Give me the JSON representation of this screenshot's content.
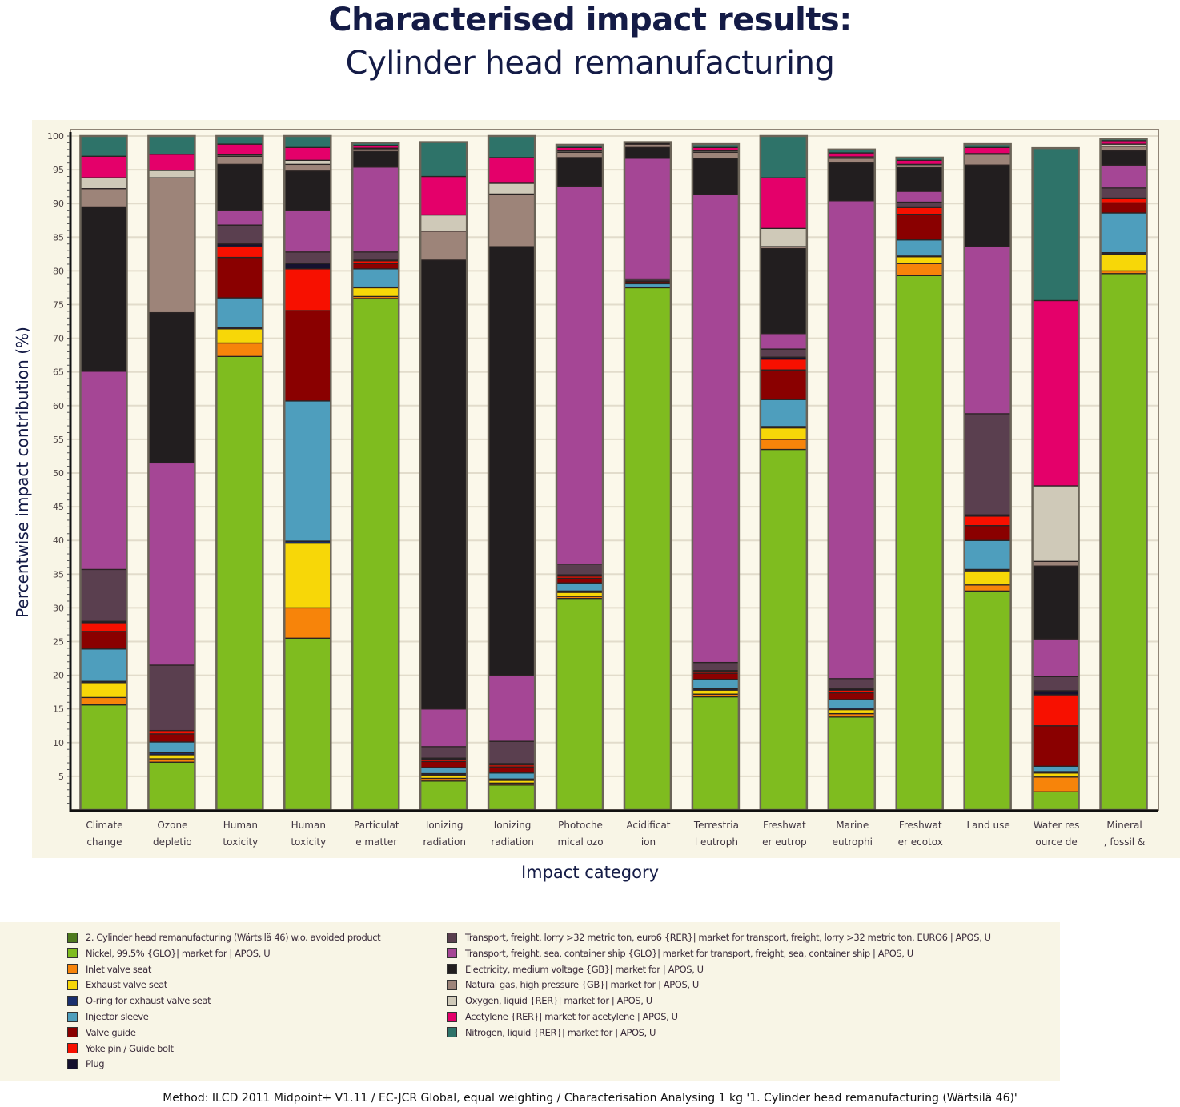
{
  "header": {
    "title": "Characterised impact results:",
    "subtitle": "Cylinder head remanufacturing"
  },
  "footer": {
    "method": "Method: ILCD 2011 Midpoint+ V1.11 / EC-JCR Global, equal weighting / Characterisation Analysing 1 kg '1. Cylinder head remanufacturing (Wärtsilä 46)'"
  },
  "chart_data": {
    "type": "bar",
    "stacked": true,
    "title": "Characterised impact results: Cylinder head remanufacturing",
    "xlabel": "Impact category",
    "ylabel": "Percentwise impact contribution (%)",
    "ylim": [
      0,
      100
    ],
    "yticks": [
      5,
      10,
      15,
      20,
      25,
      30,
      35,
      40,
      45,
      50,
      55,
      60,
      65,
      70,
      75,
      80,
      85,
      90,
      95,
      100
    ],
    "grid": true,
    "legend_position": "bottom",
    "categories": [
      [
        "Climate",
        "change"
      ],
      [
        "Ozone",
        "depletio"
      ],
      [
        "Human",
        "toxicity"
      ],
      [
        "Human",
        "toxicity"
      ],
      [
        "Particulat",
        "e matter"
      ],
      [
        "Ionizing",
        "radiation"
      ],
      [
        "Ionizing",
        "radiation"
      ],
      [
        "Photoche",
        "mical ozo"
      ],
      [
        "Acidificat",
        "ion"
      ],
      [
        "Terrestria",
        "l eutroph"
      ],
      [
        "Freshwat",
        "er eutrop"
      ],
      [
        "Marine",
        "eutrophi"
      ],
      [
        "Freshwat",
        "er ecotox"
      ],
      [
        "Land use",
        ""
      ],
      [
        "Water res",
        "ource de"
      ],
      [
        "Mineral",
        ", fossil &"
      ]
    ],
    "series": [
      {
        "name": "2. Cylinder head remanufacturing (Wärtsilä 46) w.o. avoided product",
        "color": "#4e7a1e",
        "values": [
          0,
          0,
          0,
          0,
          0,
          0,
          0,
          0,
          0,
          0,
          0,
          0,
          0,
          0,
          0,
          0
        ]
      },
      {
        "name": "Nickel, 99.5% {GLO}| market for | APOS, U",
        "color": "#7fbc1f",
        "values": [
          15.6,
          7.1,
          67.3,
          25.5,
          75.9,
          4.3,
          3.7,
          31.4,
          77.5,
          16.8,
          53.5,
          13.8,
          79.3,
          32.5,
          2.7,
          79.6
        ]
      },
      {
        "name": "Inlet valve seat",
        "color": "#f7840a",
        "values": [
          1.1,
          0.5,
          2.0,
          4.5,
          0.3,
          0.4,
          0.3,
          0.3,
          0,
          0.4,
          1.5,
          0.5,
          1.8,
          0.9,
          2.2,
          0.4
        ]
      },
      {
        "name": "Exhaust valve seat",
        "color": "#f7d708",
        "values": [
          2.2,
          0.6,
          2.1,
          9.6,
          1.3,
          0.5,
          0.4,
          0.6,
          0,
          0.6,
          1.7,
          0.6,
          1.0,
          2.1,
          0.6,
          2.5
        ]
      },
      {
        "name": "O-ring for exhaust valve seat",
        "color": "#1a2f6e",
        "values": [
          0.2,
          0.3,
          0.2,
          0.3,
          0.1,
          0.2,
          0.2,
          0.2,
          0.1,
          0.2,
          0.2,
          0.2,
          0.1,
          0.2,
          0.2,
          0.2
        ]
      },
      {
        "name": "Injector sleeve",
        "color": "#4e9ebd",
        "values": [
          4.8,
          1.6,
          4.4,
          20.8,
          2.7,
          0.9,
          0.9,
          1.2,
          0.5,
          1.4,
          4.0,
          1.3,
          2.4,
          4.3,
          0.8,
          5.9
        ]
      },
      {
        "name": "Valve guide",
        "color": "#8a0000",
        "values": [
          2.6,
          1.2,
          6.0,
          13.4,
          0.8,
          0.9,
          0.9,
          0.7,
          0.3,
          0.9,
          4.4,
          1.0,
          3.8,
          2.2,
          6.0,
          1.5
        ]
      },
      {
        "name": "Yoke pin / Guide bolt",
        "color": "#f71000",
        "values": [
          1.3,
          0.5,
          1.6,
          6.2,
          0.4,
          0.3,
          0.3,
          0.3,
          0.1,
          0.3,
          1.6,
          0.4,
          1.0,
          1.4,
          4.6,
          0.6
        ]
      },
      {
        "name": "Plug",
        "color": "#15112e",
        "values": [
          0.2,
          0,
          0.4,
          0.8,
          0.1,
          0.2,
          0.2,
          0.2,
          0,
          0.1,
          0.3,
          0.2,
          0.1,
          0.2,
          0.6,
          0.1
        ]
      },
      {
        "name": "Transport, freight, lorry >32 metric ton, euro6 {RER}| market for transport, freight, lorry >32 metric ton, EURO6 | APOS, U",
        "color": "#5a3f4f",
        "values": [
          7.7,
          9.7,
          2.8,
          1.7,
          1.2,
          1.7,
          3.3,
          1.6,
          0.3,
          1.2,
          1.2,
          1.5,
          0.7,
          15.0,
          2.1,
          1.5
        ]
      },
      {
        "name": "Transport, freight, sea, container ship {GLO}| market for transport, freight, sea, container ship | APOS, U",
        "color": "#a54695",
        "values": [
          29.4,
          30.0,
          2.2,
          6.2,
          12.6,
          5.6,
          9.8,
          56.1,
          17.9,
          69.4,
          2.3,
          70.9,
          1.6,
          24.8,
          5.6,
          3.4
        ]
      },
      {
        "name": "Electricity, medium voltage {GB}| market for | APOS, U",
        "color": "#221e1f",
        "values": [
          24.4,
          22.3,
          6.8,
          5.8,
          2.3,
          66.6,
          63.6,
          4.2,
          1.6,
          5.4,
          12.6,
          5.6,
          3.5,
          12.1,
          10.8,
          2.1
        ]
      },
      {
        "name": "Natural gas, high pressure {GB}| market for | APOS, U",
        "color": "#9d8479",
        "values": [
          2.7,
          20.0,
          1.2,
          1.0,
          0.4,
          4.3,
          7.8,
          0.8,
          0.5,
          0.9,
          0.3,
          0.7,
          0.3,
          1.6,
          0.7,
          0.7
        ]
      },
      {
        "name": "Oxygen, liquid {RER}| market for | APOS, U",
        "color": "#cfc9b8",
        "values": [
          1.6,
          1.1,
          0.2,
          0.6,
          0.1,
          2.4,
          1.6,
          0.2,
          0.1,
          0.2,
          2.7,
          0.2,
          0.2,
          0.1,
          11.2,
          0.3
        ]
      },
      {
        "name": "Acetylene {RER}| market for acetylene | APOS, U",
        "color": "#e4006a",
        "values": [
          3.2,
          2.4,
          1.6,
          1.9,
          0.4,
          5.7,
          3.8,
          0.5,
          0.1,
          0.5,
          7.5,
          0.6,
          0.6,
          0.9,
          27.5,
          0.5
        ]
      },
      {
        "name": "Nitrogen, liquid {RER}| market for | APOS, U",
        "color": "#2e7369",
        "values": [
          3.0,
          2.7,
          1.2,
          1.7,
          0.4,
          5.1,
          3.2,
          0.4,
          0.1,
          0.5,
          6.2,
          0.5,
          0.4,
          0.5,
          22.6,
          0.3
        ]
      }
    ]
  },
  "legend": {
    "left": [
      "2. Cylinder head remanufacturing (Wärtsilä 46) w.o. avoided product",
      "Nickel, 99.5% {GLO}| market for | APOS, U",
      "Inlet valve seat",
      "Exhaust valve seat",
      "O-ring for exhaust valve seat",
      "Injector sleeve",
      "Valve guide",
      "Yoke pin / Guide bolt",
      "Plug"
    ],
    "right": [
      "Transport, freight, lorry >32 metric ton, euro6 {RER}| market for transport, freight, lorry >32 metric ton, EURO6 | APOS, U",
      "Transport, freight, sea, container ship {GLO}| market for transport, freight, sea, container ship | APOS, U",
      "Electricity, medium voltage {GB}| market for | APOS, U",
      "Natural gas, high pressure {GB}| market for | APOS, U",
      "Oxygen, liquid {RER}| market for | APOS, U",
      "Acetylene {RER}| market for acetylene | APOS, U",
      "Nitrogen, liquid {RER}| market for | APOS, U"
    ]
  }
}
